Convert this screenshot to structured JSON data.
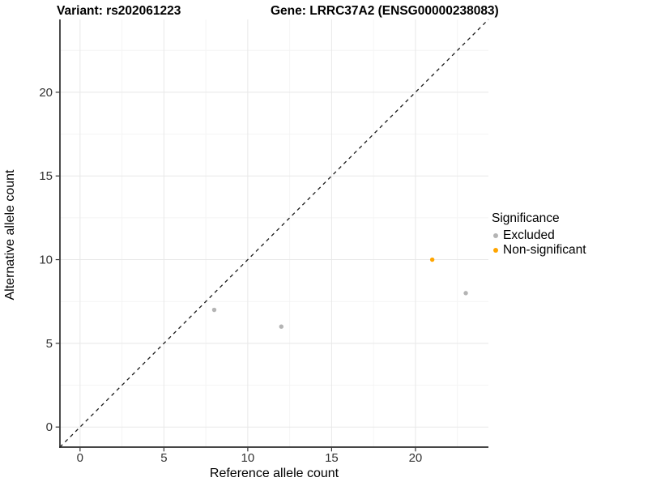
{
  "titles": {
    "variant": "Variant: rs202061223",
    "gene": "Gene: LRRC37A2 (ENSG00000238083)"
  },
  "chart_data": {
    "type": "scatter",
    "xlabel": "Reference allele count",
    "ylabel": "Alternative allele count",
    "x_ticks": [
      0,
      5,
      10,
      15,
      20
    ],
    "y_ticks": [
      0,
      5,
      10,
      15,
      20
    ],
    "xlim": [
      -1.2,
      24.35
    ],
    "ylim": [
      -1.2,
      24.35
    ],
    "minor_grid_offset": 2.5,
    "grid": "major+minor, light gray on white",
    "identity_line": {
      "type": "abline y=x",
      "style": "dashed",
      "color": "#1a1a1a"
    },
    "series": [
      {
        "name": "Excluded",
        "color": "#b4b4b4",
        "points": [
          {
            "x": 8,
            "y": 7
          },
          {
            "x": 12,
            "y": 6
          },
          {
            "x": 23,
            "y": 8
          }
        ]
      },
      {
        "name": "Non-significant",
        "color": "#FFA500",
        "points": [
          {
            "x": 21,
            "y": 10
          }
        ]
      }
    ],
    "legend": {
      "title": "Significance",
      "position": "right"
    }
  },
  "style": {
    "grid_major": "#e8e8e8",
    "grid_minor": "#f4f4f4",
    "axis_line": "#2b2b2b",
    "tick_mark": "#333333",
    "tick_label_color": "#333333",
    "point_radius": 2.7
  }
}
